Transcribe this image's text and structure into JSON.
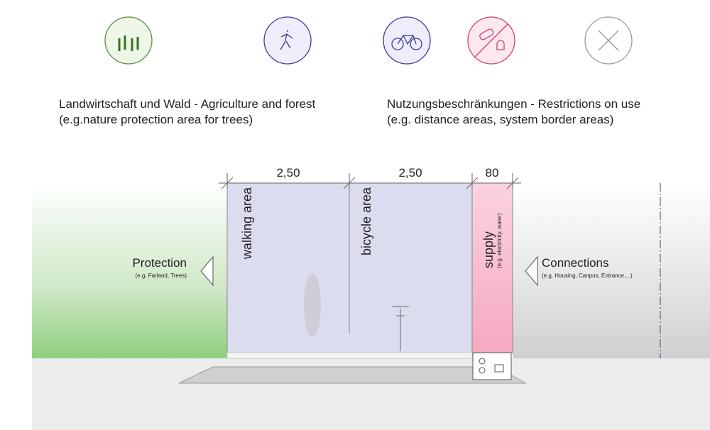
{
  "legend": {
    "left": {
      "title": "Landwirtschaft und Wald - Agriculture and forest",
      "subtitle": "(e.g.nature protection area for trees)"
    },
    "right": {
      "title": "Nutzungsbeschränkungen - Restrictions on use",
      "subtitle": "(e.g. distance areas, system border areas)"
    }
  },
  "dimensions": [
    "2,50",
    "2,50",
    "80"
  ],
  "zones": {
    "walking": "walking area",
    "bicycle": "bicycle area",
    "supply": {
      "label": "supply",
      "note": "(e.g. electricity, water)"
    }
  },
  "sides": {
    "left": {
      "label": "Protection",
      "note": "(e.g. Farland, Trees)"
    },
    "right": {
      "label": "Connections",
      "note": "(e.g. Housing, Canpus, Entrance,...)"
    }
  }
}
